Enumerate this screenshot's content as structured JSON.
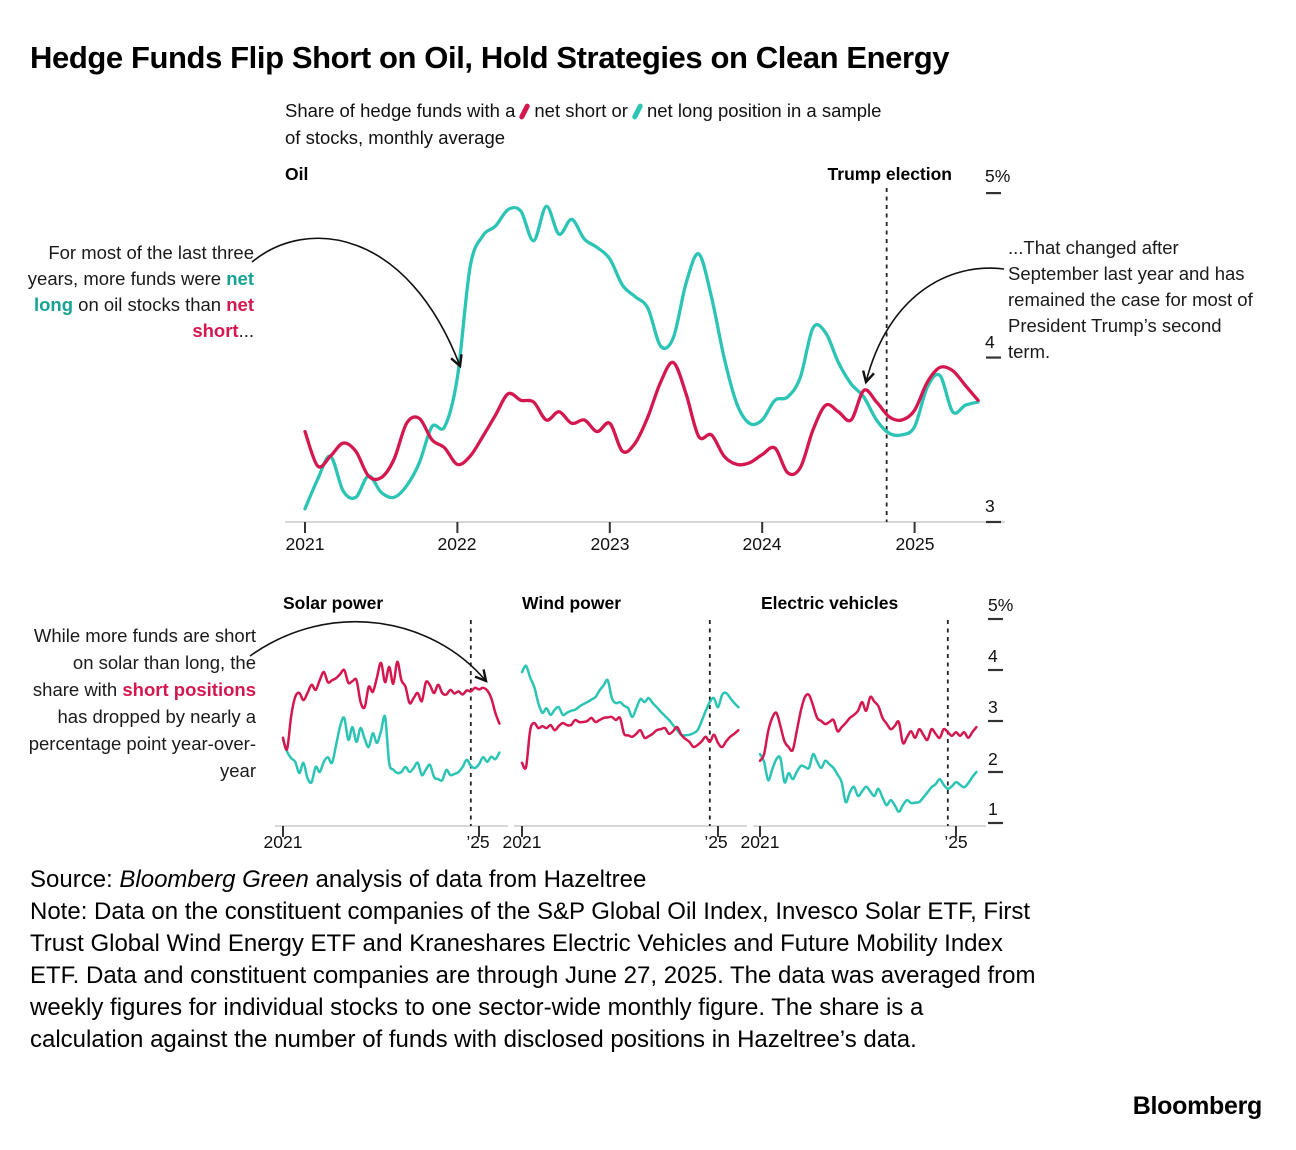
{
  "title": "Hedge Funds Flip Short on Oil, Hold Strategies on Clean Energy",
  "legend": {
    "part1": "Share of hedge funds with a",
    "short_text": "net short or",
    "long_text": "net long position in a sample",
    "line2": "of stocks, monthly average"
  },
  "colors": {
    "short": "#d4184f",
    "long": "#2cc4b4",
    "long_text": "#17a394",
    "axis": "#d8d8d8",
    "tick": "#333333",
    "event_line": "#222222"
  },
  "annotations": {
    "oil_left": {
      "pre": "For most of the last three years, more funds were ",
      "long_word": "net long",
      "mid": " on oil stocks than ",
      "short_word": "net short",
      "suffix": "..."
    },
    "oil_right": {
      "text": "...That changed after September last year and has remained the case for most of President Trump’s second term."
    },
    "solar": {
      "pre": "While more funds are short on solar than long, the share with ",
      "short_word": "short positions",
      "suffix": " has dropped by nearly a percentage point year-over-year"
    }
  },
  "footer": {
    "source_prefix": "Source: ",
    "source_italic": "Bloomberg Green",
    "source_suffix": " analysis of data from Hazeltree",
    "note": "Note: Data on the constituent companies of the S&P Global Oil Index, Invesco Solar ETF, First Trust Global Wind Energy ETF and Kraneshares Electric Vehicles and Future Mobility Index ETF. Data and constituent companies are through June 27, 2025. The data was averaged from weekly figures for individual stocks to one sector-wide monthly figure. The share is a calculation against the number of funds with disclosed positions in Hazeltree’s data."
  },
  "logo": "Bloomberg",
  "chart_data": [
    {
      "type": "line",
      "title": "Oil",
      "interval": "monthly",
      "x_start": "2021-01",
      "x_end": "2025-06",
      "x_tick_labels": [
        "2021",
        "2022",
        "2023",
        "2024",
        "2025"
      ],
      "y_tick_labels": [
        "5%",
        "4",
        "3"
      ],
      "ylim": [
        3,
        5
      ],
      "event_line": {
        "label": "Trump election",
        "x": "2024-11"
      },
      "series": [
        {
          "name": "net short",
          "color_key": "short",
          "values": [
            3.55,
            3.34,
            3.4,
            3.48,
            3.43,
            3.28,
            3.27,
            3.38,
            3.6,
            3.63,
            3.5,
            3.45,
            3.35,
            3.4,
            3.52,
            3.65,
            3.78,
            3.74,
            3.73,
            3.62,
            3.67,
            3.6,
            3.62,
            3.55,
            3.6,
            3.43,
            3.48,
            3.64,
            3.85,
            3.97,
            3.78,
            3.52,
            3.53,
            3.4,
            3.35,
            3.36,
            3.41,
            3.45,
            3.3,
            3.33,
            3.56,
            3.71,
            3.67,
            3.62,
            3.8,
            3.73,
            3.64,
            3.62,
            3.68,
            3.85,
            3.94,
            3.92,
            3.83,
            3.74
          ]
        },
        {
          "name": "net long",
          "color_key": "long",
          "values": [
            3.08,
            3.26,
            3.4,
            3.19,
            3.15,
            3.28,
            3.18,
            3.15,
            3.22,
            3.36,
            3.58,
            3.58,
            3.88,
            4.55,
            4.74,
            4.8,
            4.9,
            4.89,
            4.71,
            4.92,
            4.75,
            4.84,
            4.72,
            4.67,
            4.6,
            4.44,
            4.37,
            4.3,
            4.07,
            4.12,
            4.45,
            4.63,
            4.37,
            4.0,
            3.72,
            3.6,
            3.62,
            3.74,
            3.76,
            3.88,
            4.18,
            4.15,
            3.97,
            3.84,
            3.76,
            3.62,
            3.54,
            3.53,
            3.58,
            3.82,
            3.89,
            3.67,
            3.71,
            3.73
          ]
        }
      ]
    },
    {
      "type": "line",
      "title": "Solar power",
      "interval": "monthly",
      "x_start": "2021-01",
      "x_end": "2025-06",
      "x_tick_labels": [
        "2021",
        "’25"
      ],
      "y_tick_labels": [
        "5%",
        "4",
        "3",
        "2",
        "1"
      ],
      "ylim": [
        1,
        5
      ],
      "event_line": {
        "label": "",
        "x": "2024-11"
      },
      "series": [
        {
          "name": "net short",
          "color_key": "short",
          "values": [
            2.67,
            2.45,
            3.1,
            3.47,
            3.55,
            3.41,
            3.55,
            3.71,
            3.61,
            3.8,
            3.96,
            3.76,
            3.8,
            3.84,
            3.92,
            4.0,
            3.75,
            3.78,
            3.8,
            3.37,
            3.27,
            3.67,
            3.57,
            3.85,
            4.14,
            3.76,
            4.06,
            3.73,
            4.16,
            3.8,
            3.67,
            3.35,
            3.45,
            3.55,
            3.39,
            3.76,
            3.7,
            3.55,
            3.71,
            3.55,
            3.52,
            3.61,
            3.54,
            3.58,
            3.52,
            3.6,
            3.58,
            3.65,
            3.62,
            3.65,
            3.6,
            3.45,
            3.16,
            2.95
          ]
        },
        {
          "name": "net long",
          "color_key": "long",
          "values": [
            2.63,
            2.4,
            2.27,
            2.2,
            1.98,
            2.18,
            1.88,
            1.8,
            2.1,
            2.0,
            2.2,
            2.29,
            2.18,
            2.53,
            2.9,
            3.06,
            2.63,
            2.88,
            2.59,
            2.86,
            2.65,
            2.49,
            2.76,
            2.57,
            2.8,
            3.08,
            2.18,
            2.05,
            1.98,
            2.0,
            2.1,
            2.0,
            2.08,
            2.18,
            1.94,
            2.05,
            2.14,
            1.9,
            1.86,
            1.84,
            2.04,
            1.94,
            1.96,
            2.0,
            2.1,
            2.24,
            2.12,
            2.08,
            2.15,
            2.29,
            2.2,
            2.3,
            2.25,
            2.38
          ]
        }
      ]
    },
    {
      "type": "line",
      "title": "Wind power",
      "interval": "monthly",
      "x_start": "2021-01",
      "x_end": "2025-06",
      "x_tick_labels": [
        "2021",
        "’25"
      ],
      "y_tick_labels": [
        "5%",
        "4",
        "3",
        "2",
        "1"
      ],
      "ylim": [
        1,
        5
      ],
      "event_line": {
        "label": "",
        "x": "2024-11"
      },
      "series": [
        {
          "name": "net short",
          "color_key": "short",
          "values": [
            2.18,
            2.1,
            2.82,
            2.96,
            2.86,
            2.9,
            2.86,
            2.92,
            2.82,
            2.9,
            2.96,
            2.92,
            2.92,
            3.02,
            2.98,
            2.98,
            3.0,
            3.06,
            2.98,
            3.02,
            3.06,
            3.07,
            3.08,
            3.02,
            3.06,
            2.75,
            2.72,
            2.69,
            2.75,
            2.82,
            2.67,
            2.7,
            2.75,
            2.82,
            2.84,
            2.86,
            2.75,
            2.8,
            2.88,
            2.73,
            2.65,
            2.59,
            2.49,
            2.53,
            2.6,
            2.69,
            2.59,
            2.73,
            2.57,
            2.49,
            2.6,
            2.69,
            2.75,
            2.82
          ]
        },
        {
          "name": "net long",
          "color_key": "long",
          "values": [
            3.96,
            4.08,
            3.85,
            3.67,
            3.35,
            3.16,
            3.25,
            3.12,
            3.22,
            3.27,
            3.12,
            3.16,
            3.2,
            3.22,
            3.28,
            3.33,
            3.37,
            3.42,
            3.47,
            3.6,
            3.7,
            3.8,
            3.45,
            3.35,
            3.37,
            3.3,
            3.25,
            3.08,
            3.25,
            3.43,
            3.37,
            3.45,
            3.35,
            3.27,
            3.18,
            3.1,
            3.02,
            2.92,
            2.82,
            2.73,
            2.72,
            2.73,
            2.76,
            2.82,
            3.0,
            3.2,
            3.37,
            3.45,
            3.27,
            3.51,
            3.55,
            3.45,
            3.35,
            3.27
          ]
        }
      ]
    },
    {
      "type": "line",
      "title": "Electric vehicles",
      "interval": "monthly",
      "x_start": "2021-01",
      "x_end": "2025-06",
      "x_tick_labels": [
        "2021",
        "’25"
      ],
      "y_tick_labels": [
        "5%",
        "4",
        "3",
        "2",
        "1"
      ],
      "ylim": [
        1,
        5
      ],
      "event_line": {
        "label": "",
        "x": "2024-11"
      },
      "series": [
        {
          "name": "net short",
          "color_key": "short",
          "values": [
            2.22,
            2.35,
            2.8,
            3.06,
            3.16,
            2.9,
            2.6,
            2.49,
            2.43,
            2.8,
            3.2,
            3.47,
            3.51,
            3.3,
            3.06,
            3.0,
            2.94,
            2.98,
            3.02,
            2.8,
            2.88,
            2.96,
            3.06,
            3.12,
            3.2,
            3.37,
            3.2,
            3.47,
            3.38,
            3.29,
            3.06,
            2.95,
            2.84,
            2.9,
            2.98,
            2.57,
            2.68,
            2.8,
            2.67,
            2.84,
            2.73,
            2.63,
            2.84,
            2.75,
            2.67,
            2.84,
            2.78,
            2.71,
            2.78,
            2.71,
            2.78,
            2.67,
            2.78,
            2.88
          ]
        },
        {
          "name": "net long",
          "color_key": "long",
          "values": [
            2.35,
            2.2,
            1.84,
            2.05,
            2.25,
            2.27,
            1.8,
            1.98,
            1.86,
            2.0,
            2.12,
            2.1,
            2.08,
            2.35,
            2.2,
            2.08,
            2.22,
            2.15,
            2.08,
            1.95,
            1.8,
            1.41,
            1.6,
            1.71,
            1.53,
            1.62,
            1.71,
            1.62,
            1.53,
            1.67,
            1.5,
            1.35,
            1.45,
            1.35,
            1.22,
            1.35,
            1.45,
            1.39,
            1.4,
            1.41,
            1.5,
            1.6,
            1.7,
            1.76,
            1.86,
            1.75,
            1.67,
            1.72,
            1.8,
            1.75,
            1.7,
            1.78,
            1.9,
            2.0
          ]
        }
      ]
    }
  ]
}
